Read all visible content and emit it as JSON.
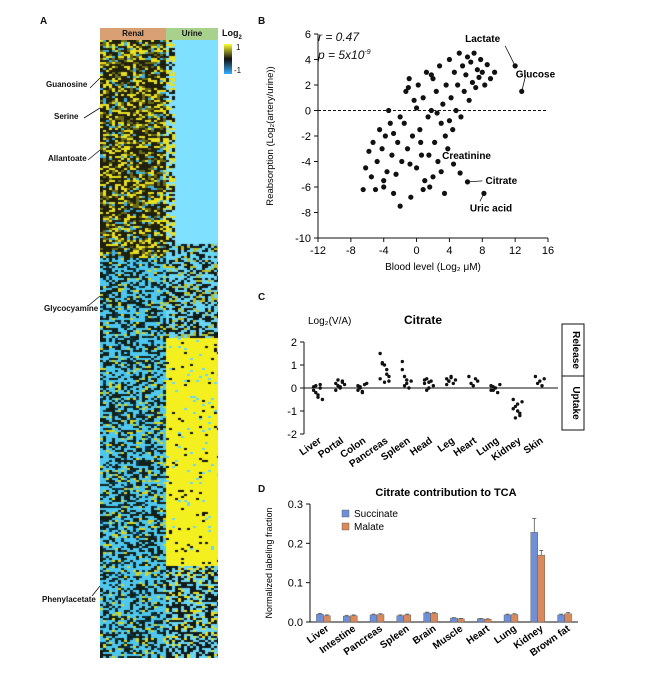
{
  "panelA": {
    "letter": "A",
    "col_renal": "Renal",
    "col_urine": "Urine",
    "legend_title": "Log",
    "legend_sub": "2",
    "legend_max": "1",
    "legend_min": "-1",
    "row_labels": [
      "Guanosine",
      "Serine",
      "Allantoate",
      "Glycocyamine",
      "Phenylacetate"
    ]
  },
  "panelB": {
    "letter": "B",
    "stat_r": "r = 0.47",
    "stat_p_base": "p = 5x10",
    "stat_p_exp": "-9",
    "ylabel": "Reabsorption (Log₂(artery/urine))",
    "xlabel": "Blood level (Log₂ μM)",
    "annotations": [
      "Lactate",
      "Glucose",
      "Creatinine",
      "Citrate",
      "Uric acid"
    ]
  },
  "panelC": {
    "letter": "C",
    "title": "Citrate",
    "ylabel": "Log₂(V/A)",
    "release": "Release",
    "uptake": "Uptake"
  },
  "panelD": {
    "letter": "D",
    "title": "Citrate contribution to TCA",
    "ylabel": "Normalized labeling fraction",
    "legend_succinate": "Succinate",
    "legend_malate": "Malate"
  },
  "chart_data": [
    {
      "panel": "B",
      "type": "scatter",
      "xlim": [
        -12,
        16
      ],
      "ylim": [
        -10,
        6
      ],
      "xticks": [
        -12,
        -8,
        -4,
        0,
        4,
        8,
        12,
        16
      ],
      "yticks": [
        -10,
        -8,
        -6,
        -4,
        -2,
        0,
        2,
        4,
        6
      ],
      "reference_line_y": 0,
      "labeled_points": [
        {
          "label": "Lactate",
          "x": 12,
          "y": 3.5
        },
        {
          "label": "Glucose",
          "x": 12.8,
          "y": 1.5
        },
        {
          "label": "Creatinine",
          "x": 5.3,
          "y": -4.9
        },
        {
          "label": "Citrate",
          "x": 6.2,
          "y": -5.6
        },
        {
          "label": "Uric acid",
          "x": 8.2,
          "y": -6.5
        }
      ],
      "points": [
        [
          -6.5,
          -6.2
        ],
        [
          -6.2,
          -4.5
        ],
        [
          -5.8,
          -3.2
        ],
        [
          -5.5,
          -5.2
        ],
        [
          -5.3,
          -2.5
        ],
        [
          -5.0,
          -6.2
        ],
        [
          -4.8,
          -4.0
        ],
        [
          -4.5,
          -1.5
        ],
        [
          -4.2,
          -3.0
        ],
        [
          -4.0,
          -6.0
        ],
        [
          -3.8,
          -2.0
        ],
        [
          -3.6,
          -4.8
        ],
        [
          -3.4,
          0.0
        ],
        [
          -3.2,
          -1.0
        ],
        [
          -3.0,
          -3.5
        ],
        [
          -2.8,
          -6.5
        ],
        [
          -2.5,
          -5.0
        ],
        [
          -2.3,
          -2.5
        ],
        [
          -2.0,
          -7.5
        ],
        [
          -1.8,
          -4.0
        ],
        [
          -1.5,
          -1.0
        ],
        [
          -1.3,
          1.5
        ],
        [
          -1.1,
          -3.0
        ],
        [
          -0.9,
          2.5
        ],
        [
          -0.7,
          -6.8
        ],
        [
          -0.5,
          -2.0
        ],
        [
          -0.3,
          0.8
        ],
        [
          0.0,
          -4.5
        ],
        [
          0.2,
          2.0
        ],
        [
          0.4,
          -1.5
        ],
        [
          0.6,
          -3.5
        ],
        [
          0.8,
          1.0
        ],
        [
          1.0,
          -5.5
        ],
        [
          1.2,
          3.0
        ],
        [
          1.4,
          -0.5
        ],
        [
          1.6,
          -6.0
        ],
        [
          1.8,
          0.0
        ],
        [
          2.0,
          2.5
        ],
        [
          2.2,
          -2.5
        ],
        [
          2.4,
          1.5
        ],
        [
          2.6,
          -4.0
        ],
        [
          2.8,
          3.5
        ],
        [
          3.0,
          -1.0
        ],
        [
          3.2,
          0.5
        ],
        [
          3.4,
          -6.5
        ],
        [
          3.6,
          2.0
        ],
        [
          3.8,
          -3.0
        ],
        [
          4.0,
          4.0
        ],
        [
          4.2,
          1.0
        ],
        [
          4.4,
          -1.5
        ],
        [
          4.6,
          3.0
        ],
        [
          4.8,
          0.0
        ],
        [
          5.0,
          2.0
        ],
        [
          5.2,
          4.5
        ],
        [
          5.4,
          -0.5
        ],
        [
          5.6,
          3.5
        ],
        [
          5.8,
          1.5
        ],
        [
          6.0,
          2.8
        ],
        [
          6.2,
          4.2
        ],
        [
          6.4,
          0.8
        ],
        [
          6.6,
          3.8
        ],
        [
          6.8,
          2.2
        ],
        [
          7.0,
          4.5
        ],
        [
          7.2,
          1.8
        ],
        [
          7.4,
          3.2
        ],
        [
          7.6,
          2.6
        ],
        [
          7.8,
          4.0
        ],
        [
          8.0,
          3.0
        ],
        [
          8.3,
          2.0
        ],
        [
          8.6,
          3.6
        ],
        [
          9.0,
          2.5
        ],
        [
          9.5,
          3.0
        ],
        [
          -2.0,
          -0.5
        ],
        [
          0.5,
          -2.5
        ],
        [
          1.5,
          -3.5
        ],
        [
          2.5,
          -0.2
        ],
        [
          3.5,
          -2.0
        ],
        [
          4.5,
          -4.2
        ],
        [
          -1.0,
          1.8
        ],
        [
          0.0,
          0.2
        ],
        [
          2.0,
          -5.2
        ],
        [
          3.0,
          -4.8
        ],
        [
          -0.8,
          -4.2
        ],
        [
          1.8,
          2.8
        ],
        [
          4.0,
          -0.8
        ],
        [
          -4.0,
          -5.5
        ],
        [
          -2.8,
          -1.8
        ],
        [
          0.8,
          -6.2
        ]
      ]
    },
    {
      "panel": "C",
      "type": "scatter",
      "title": "Citrate",
      "categories": [
        "Liver",
        "Portal",
        "Colon",
        "Pancreas",
        "Spleen",
        "Head",
        "Leg",
        "Heart",
        "Lung",
        "Kidney",
        "Skin"
      ],
      "ylim": [
        -2,
        2
      ],
      "yticks": [
        -2,
        -1,
        0,
        1,
        2
      ],
      "values": [
        [
          -0.1,
          0.1,
          -0.3,
          0.0,
          -0.5,
          0.05,
          -0.2,
          -0.4,
          0.15
        ],
        [
          0.2,
          0.1,
          0.0,
          0.3,
          0.15,
          -0.1,
          0.35,
          0.05,
          0.25
        ],
        [
          0.1,
          0.0,
          -0.2,
          0.15,
          0.2,
          -0.1,
          0.05,
          -0.15
        ],
        [
          1.5,
          1.05,
          1.0,
          0.8,
          0.5,
          0.4,
          1.1,
          0.25,
          0.6,
          0.3
        ],
        [
          1.15,
          0.5,
          0.2,
          0.0,
          0.3,
          0.8,
          0.1,
          0.35
        ],
        [
          0.2,
          0.4,
          0.0,
          0.3,
          0.1,
          0.35,
          -0.1,
          0.25
        ],
        [
          0.4,
          0.3,
          0.5,
          0.2,
          0.35,
          0.15,
          0.3,
          0.45
        ],
        [
          0.5,
          0.2,
          0.1,
          0.4,
          0.3
        ],
        [
          0.1,
          -0.1,
          0.0,
          -0.2,
          0.15,
          -0.1,
          0.05
        ],
        [
          -0.5,
          -0.8,
          -1.0,
          -1.2,
          -0.6,
          -0.9,
          -1.3,
          -0.7,
          -1.1
        ],
        [
          0.5,
          0.2,
          0.3,
          0.1,
          0.4
        ]
      ]
    },
    {
      "panel": "D",
      "type": "bar",
      "title": "Citrate contribution to TCA",
      "ylabel": "Normalized labeling fraction",
      "categories": [
        "Liver",
        "Intestine",
        "Pancreas",
        "Spleen",
        "Brain",
        "Muscle",
        "Heart",
        "Lung",
        "Kidney",
        "Brown fat"
      ],
      "ylim": [
        0,
        0.3
      ],
      "yticks": [
        0.0,
        0.1,
        0.2,
        0.3
      ],
      "series": [
        {
          "name": "Succinate",
          "color": "#6f8fd6",
          "values": [
            0.02,
            0.015,
            0.018,
            0.016,
            0.023,
            0.01,
            0.008,
            0.018,
            0.228,
            0.018
          ],
          "errors": [
            0.002,
            0.002,
            0.002,
            0.002,
            0.002,
            0.001,
            0.001,
            0.002,
            0.035,
            0.002
          ]
        },
        {
          "name": "Malate",
          "color": "#d9895a",
          "values": [
            0.016,
            0.016,
            0.019,
            0.018,
            0.022,
            0.008,
            0.007,
            0.019,
            0.17,
            0.021
          ],
          "errors": [
            0.002,
            0.002,
            0.002,
            0.002,
            0.002,
            0.001,
            0.001,
            0.002,
            0.012,
            0.003
          ]
        }
      ]
    }
  ]
}
